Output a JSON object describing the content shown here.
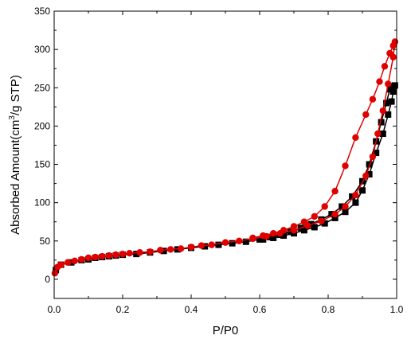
{
  "chart_data": {
    "type": "scatter",
    "title": "",
    "xlabel": "P/P0",
    "ylabel_parts": [
      "Absorbed Amount(cm",
      "3",
      "/g STP)"
    ],
    "xlim": [
      0.0,
      1.0
    ],
    "ylim": [
      -25,
      350
    ],
    "x_ticks": [
      "0.0",
      "0.2",
      "0.4",
      "0.6",
      "0.8",
      "1.0"
    ],
    "y_ticks": [
      "0",
      "50",
      "100",
      "150",
      "200",
      "250",
      "300",
      "350"
    ],
    "grid": false,
    "legend": "none",
    "series": [
      {
        "color": "#000000",
        "marker": "square",
        "x": [
          0.005,
          0.02,
          0.05,
          0.08,
          0.1,
          0.12,
          0.14,
          0.16,
          0.18,
          0.2,
          0.24,
          0.28,
          0.32,
          0.36,
          0.4,
          0.44,
          0.48,
          0.52,
          0.56,
          0.6,
          0.63,
          0.66,
          0.69,
          0.72,
          0.75,
          0.78,
          0.81,
          0.84,
          0.87,
          0.9,
          0.92,
          0.94,
          0.955,
          0.97,
          0.98,
          0.99,
          0.995,
          0.99,
          0.985,
          0.975,
          0.96,
          0.94,
          0.92,
          0.9,
          0.88,
          0.85,
          0.82,
          0.79,
          0.76,
          0.73,
          0.7,
          0.67,
          0.64,
          0.61
        ],
        "y": [
          12,
          19,
          22,
          25,
          26,
          28,
          29,
          30,
          31,
          32,
          33,
          35,
          37,
          39,
          41,
          43,
          45,
          47,
          49,
          52,
          55,
          58,
          62,
          67,
          72,
          78,
          85,
          95,
          108,
          128,
          150,
          180,
          205,
          230,
          248,
          252,
          253,
          245,
          232,
          215,
          190,
          165,
          137,
          116,
          100,
          88,
          80,
          73,
          68,
          64,
          60,
          57,
          54,
          52
        ]
      },
      {
        "color": "#e00000",
        "marker": "circle",
        "x": [
          0.002,
          0.01,
          0.02,
          0.04,
          0.06,
          0.08,
          0.1,
          0.12,
          0.14,
          0.16,
          0.18,
          0.2,
          0.22,
          0.25,
          0.28,
          0.31,
          0.34,
          0.37,
          0.4,
          0.43,
          0.46,
          0.5,
          0.54,
          0.58,
          0.62,
          0.66,
          0.7,
          0.74,
          0.78,
          0.82,
          0.85,
          0.88,
          0.91,
          0.93,
          0.945,
          0.96,
          0.975,
          0.99,
          0.995,
          0.99,
          0.98,
          0.965,
          0.95,
          0.93,
          0.91,
          0.88,
          0.85,
          0.82,
          0.79,
          0.76,
          0.73,
          0.7,
          0.67,
          0.64,
          0.61,
          0.58
        ],
        "y": [
          8,
          16,
          19,
          22,
          24,
          26,
          28,
          29,
          30,
          31,
          32,
          33,
          34,
          35,
          36,
          38,
          39,
          40,
          42,
          44,
          45,
          48,
          50,
          53,
          56,
          60,
          64,
          70,
          76,
          85,
          95,
          110,
          135,
          160,
          190,
          220,
          255,
          290,
          310,
          305,
          295,
          278,
          258,
          235,
          215,
          185,
          148,
          115,
          95,
          82,
          75,
          69,
          64,
          60,
          57,
          54
        ]
      }
    ]
  }
}
